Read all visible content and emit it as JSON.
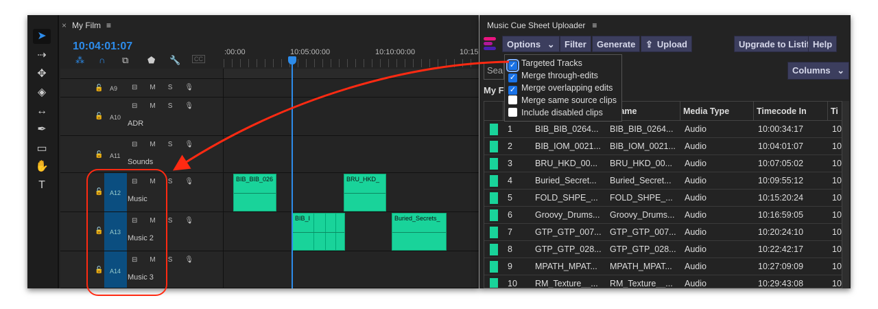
{
  "timeline": {
    "tab_title": "My Film",
    "timecode": "10:04:01:07",
    "ruler_labels": [
      ":00:00",
      "10:05:00:00",
      "10:10:00:00",
      "10:15"
    ],
    "tracks": [
      {
        "id": "A9",
        "name": ""
      },
      {
        "id": "A10",
        "name": "ADR"
      },
      {
        "id": "A11",
        "name": "Sounds"
      },
      {
        "id": "A12",
        "name": "Music",
        "targeted": true
      },
      {
        "id": "A13",
        "name": "Music 2",
        "targeted": true
      },
      {
        "id": "A14",
        "name": "Music 3",
        "targeted": true
      }
    ],
    "track_buttons": {
      "mute": "M",
      "solo": "S"
    },
    "clips": [
      "BIB_BIB_026",
      "BRU_HKD_",
      "BIB_I",
      "Buried_Secrets_"
    ],
    "cc_label": "CC"
  },
  "panel": {
    "title": "Music Cue Sheet Uploader",
    "buttons": {
      "options": "Options",
      "filter": "Filter",
      "generate": "Generate",
      "upload": "Upload",
      "upgrade": "Upgrade to Listify",
      "help": "Help",
      "columns": "Columns"
    },
    "search_placeholder": "Sea",
    "section_title": "My F",
    "options_menu": [
      {
        "label": "Targeted Tracks",
        "checked": true
      },
      {
        "label": "Merge through-edits",
        "checked": true
      },
      {
        "label": "Merge overlapping edits",
        "checked": true
      },
      {
        "label": "Merge same source clips",
        "checked": false
      },
      {
        "label": "Include disabled clips",
        "checked": false
      }
    ],
    "table": {
      "headers": [
        "",
        "",
        "",
        "e Name",
        "Media Type",
        "Timecode In",
        "Ti"
      ],
      "rows": [
        [
          "1",
          "BIB_BIB_0264...",
          "BIB_BIB_0264...",
          "Audio",
          "10:00:34:17",
          "10"
        ],
        [
          "2",
          "BIB_IOM_0021...",
          "BIB_IOM_0021...",
          "Audio",
          "10:04:01:07",
          "10"
        ],
        [
          "3",
          "BRU_HKD_00...",
          "BRU_HKD_00...",
          "Audio",
          "10:07:05:02",
          "10"
        ],
        [
          "4",
          "Buried_Secret...",
          "Buried_Secret...",
          "Audio",
          "10:09:55:12",
          "10"
        ],
        [
          "5",
          "FOLD_SHPE_...",
          "FOLD_SHPE_...",
          "Audio",
          "10:15:20:24",
          "10"
        ],
        [
          "6",
          "Groovy_Drums...",
          "Groovy_Drums...",
          "Audio",
          "10:16:59:05",
          "10"
        ],
        [
          "7",
          "GTP_GTP_007...",
          "GTP_GTP_007...",
          "Audio",
          "10:20:24:10",
          "10"
        ],
        [
          "8",
          "GTP_GTP_028...",
          "GTP_GTP_028...",
          "Audio",
          "10:22:42:17",
          "10"
        ],
        [
          "9",
          "MPATH_MPAT...",
          "MPATH_MPAT...",
          "Audio",
          "10:27:09:09",
          "10"
        ],
        [
          "10",
          "RM_Texture__...",
          "RM_Texture__...",
          "Audio",
          "10:29:43:08",
          "10"
        ]
      ]
    }
  },
  "colors": {
    "accent": "#2d8ceb",
    "clip": "#19d39a",
    "button": "#3c3e5e",
    "annotation": "#ff2a12",
    "target": "#0b4e80"
  }
}
